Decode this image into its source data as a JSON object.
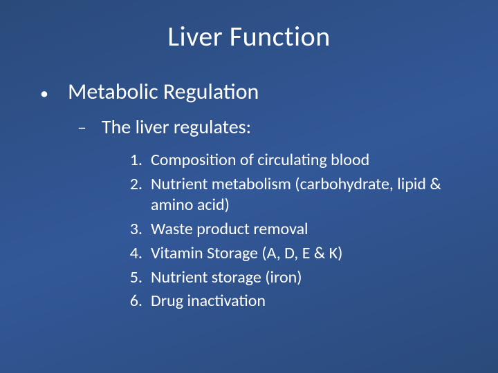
{
  "slide": {
    "title": "Liver Function",
    "bullet_l1": {
      "text": "Metabolic Regulation"
    },
    "bullet_l2": {
      "text": "The liver regulates:"
    },
    "numbered": [
      {
        "num": "1.",
        "text": "Composition of circulating blood"
      },
      {
        "num": "2.",
        "text": "Nutrient metabolism (carbohydrate, lipid & amino acid)"
      },
      {
        "num": "3.",
        "text": "Waste product removal"
      },
      {
        "num": "4.",
        "text": "Vitamin Storage (A, D, E & K)"
      },
      {
        "num": "5.",
        "text": "Nutrient storage (iron)"
      },
      {
        "num": "6.",
        "text": "Drug inactivation"
      }
    ]
  },
  "style": {
    "background_gradient": [
      "#2a4a7a",
      "#2e5189",
      "#335899"
    ],
    "text_color": "#ffffff",
    "font_family": "Calibri",
    "title_fontsize": 40,
    "l1_fontsize": 32,
    "l2_fontsize": 28,
    "num_fontsize": 24
  }
}
